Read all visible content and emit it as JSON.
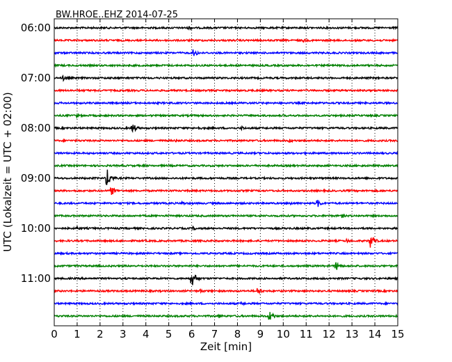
{
  "chart_data": {
    "type": "line",
    "title": "BW.HROE..EHZ 2014-07-25",
    "xlabel": "Zeit  [min]",
    "ylabel": "UTC (Lokalzeit = UTC + 02:00)",
    "xlim": [
      0,
      15
    ],
    "x_ticks": [
      "0",
      "1",
      "2",
      "3",
      "4",
      "5",
      "6",
      "7",
      "8",
      "9",
      "10",
      "11",
      "12",
      "13",
      "14",
      "15"
    ],
    "y_ticks": [
      "06:00",
      "07:00",
      "08:00",
      "09:00",
      "10:00",
      "11:00"
    ],
    "grid": "vertical dotted",
    "colors": [
      "#000000",
      "#ff0000",
      "#0000ff",
      "#008000"
    ],
    "traces": [
      {
        "start": "06:00",
        "color": "#000000",
        "events": [
          {
            "t": 5.9,
            "amp": 3
          }
        ]
      },
      {
        "start": "06:15",
        "color": "#ff0000",
        "events": [
          {
            "t": 10.9,
            "amp": 3
          }
        ]
      },
      {
        "start": "06:30",
        "color": "#0000ff",
        "events": [
          {
            "t": 6.1,
            "amp": 6
          }
        ]
      },
      {
        "start": "06:45",
        "color": "#008000",
        "events": []
      },
      {
        "start": "07:00",
        "color": "#000000",
        "events": [
          {
            "t": 0.4,
            "amp": 4
          }
        ]
      },
      {
        "start": "07:15",
        "color": "#ff0000",
        "events": []
      },
      {
        "start": "07:30",
        "color": "#0000ff",
        "events": []
      },
      {
        "start": "07:45",
        "color": "#008000",
        "events": [
          {
            "t": 1.0,
            "amp": 3
          }
        ]
      },
      {
        "start": "08:00",
        "color": "#000000",
        "events": [
          {
            "t": 3.4,
            "amp": 8
          },
          {
            "t": 6.3,
            "amp": 3
          },
          {
            "t": 8.2,
            "amp": 3
          }
        ]
      },
      {
        "start": "08:15",
        "color": "#ff0000",
        "events": [
          {
            "t": 5.3,
            "amp": 3
          },
          {
            "t": 10.3,
            "amp": 3
          }
        ]
      },
      {
        "start": "08:30",
        "color": "#0000ff",
        "events": []
      },
      {
        "start": "08:45",
        "color": "#008000",
        "events": []
      },
      {
        "start": "09:00",
        "color": "#000000",
        "events": [
          {
            "t": 2.3,
            "amp": 14
          }
        ]
      },
      {
        "start": "09:15",
        "color": "#ff0000",
        "events": [
          {
            "t": 2.5,
            "amp": 7
          }
        ]
      },
      {
        "start": "09:30",
        "color": "#0000ff",
        "events": [
          {
            "t": 5.6,
            "amp": 3
          },
          {
            "t": 10.3,
            "amp": 3
          },
          {
            "t": 11.5,
            "amp": 6
          }
        ]
      },
      {
        "start": "09:45",
        "color": "#008000",
        "events": [
          {
            "t": 12.6,
            "amp": 3
          }
        ]
      },
      {
        "start": "10:00",
        "color": "#000000",
        "events": [
          {
            "t": 1.0,
            "amp": 3
          },
          {
            "t": 6.1,
            "amp": 3
          }
        ]
      },
      {
        "start": "10:15",
        "color": "#ff0000",
        "events": [
          {
            "t": 12.8,
            "amp": 3
          },
          {
            "t": 13.8,
            "amp": 10
          }
        ]
      },
      {
        "start": "10:30",
        "color": "#0000ff",
        "events": []
      },
      {
        "start": "10:45",
        "color": "#008000",
        "events": [
          {
            "t": 12.3,
            "amp": 7
          }
        ]
      },
      {
        "start": "11:00",
        "color": "#000000",
        "events": [
          {
            "t": 6.0,
            "amp": 13
          }
        ]
      },
      {
        "start": "11:15",
        "color": "#ff0000",
        "events": [
          {
            "t": 6.4,
            "amp": 3
          },
          {
            "t": 8.9,
            "amp": 5
          }
        ]
      },
      {
        "start": "11:30",
        "color": "#0000ff",
        "events": [
          {
            "t": 8.2,
            "amp": 3
          }
        ]
      },
      {
        "start": "11:45",
        "color": "#008000",
        "events": [
          {
            "t": 7.2,
            "amp": 3
          },
          {
            "t": 9.4,
            "amp": 8
          }
        ]
      }
    ]
  }
}
